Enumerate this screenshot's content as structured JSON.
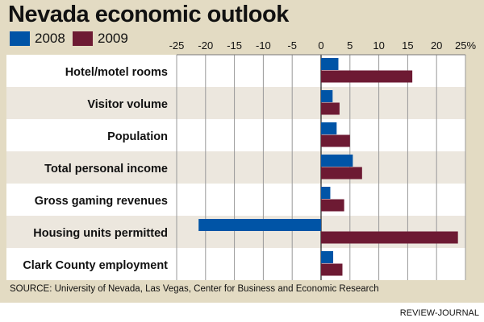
{
  "title": "Nevada economic outlook",
  "source": "SOURCE: University of Nevada, Las Vegas, Center for Business and Economic Research",
  "credit": "REVIEW-JOURNAL",
  "chart_data": {
    "type": "bar",
    "orientation": "horizontal",
    "title": "Nevada economic outlook",
    "categories": [
      "Hotel/motel rooms",
      "Visitor volume",
      "Population",
      "Total personal income",
      "Gross gaming revenues",
      "Housing units permitted",
      "Clark County employment"
    ],
    "series": [
      {
        "name": "2008",
        "color": "#0054a6",
        "values": [
          3.0,
          2.0,
          2.7,
          5.5,
          1.6,
          -21.2,
          2.1
        ]
      },
      {
        "name": "2009",
        "color": "#6d1a33",
        "values": [
          15.8,
          3.2,
          5.0,
          7.1,
          4.0,
          23.7,
          3.7
        ]
      }
    ],
    "xlim": [
      -25,
      25
    ],
    "xticks": [
      -25,
      -20,
      -15,
      -10,
      -5,
      0,
      5,
      10,
      15,
      20,
      25
    ],
    "xtick_labels": [
      "-25",
      "-20",
      "-15",
      "-10",
      "-5",
      "0",
      "5",
      "10",
      "15",
      "20",
      "25%"
    ],
    "legend": "top-left",
    "grid": true
  }
}
